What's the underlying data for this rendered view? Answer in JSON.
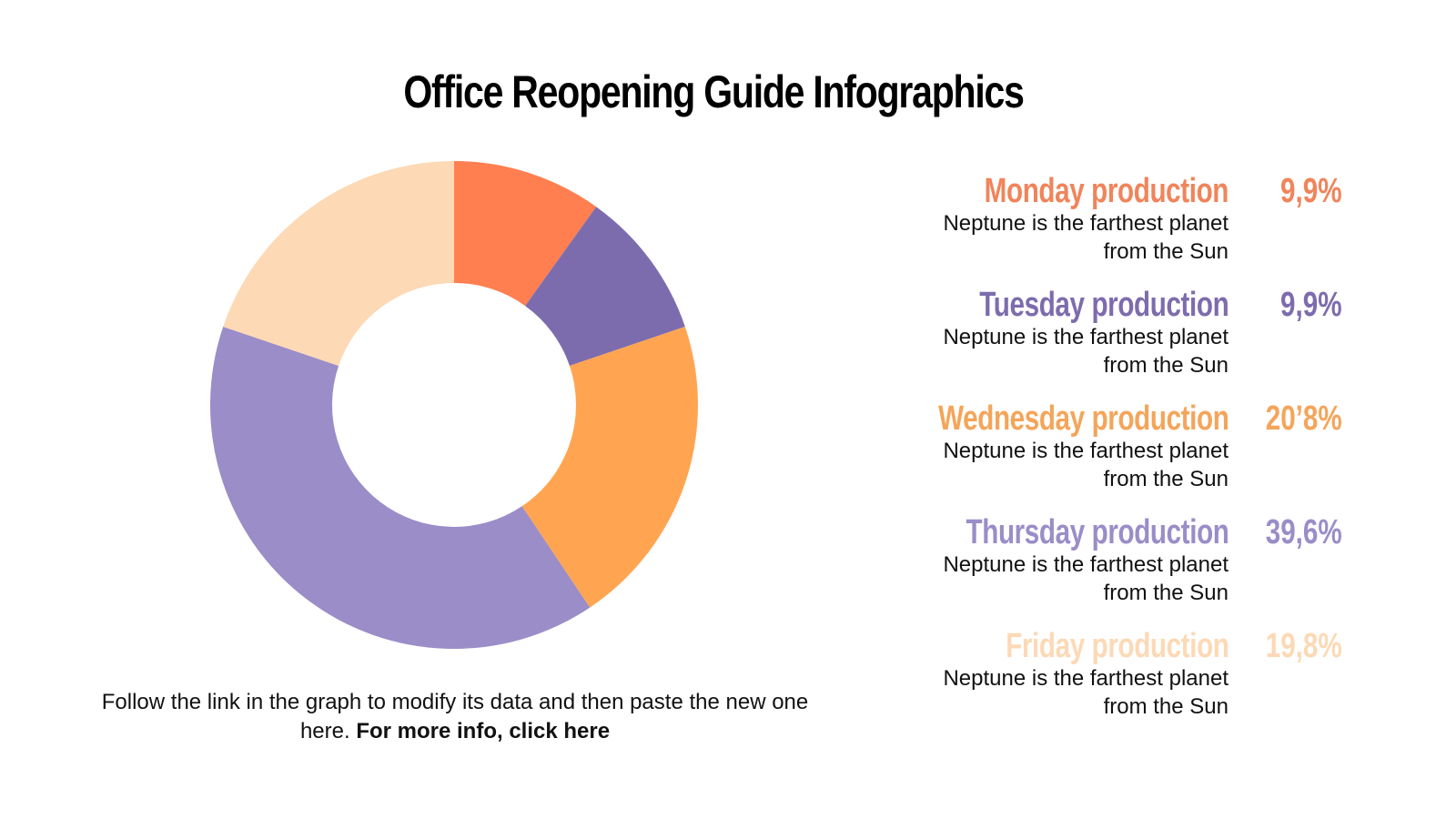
{
  "title": "Office Reopening Guide Infographics",
  "caption": {
    "text": "Follow the link in the graph to modify its data and then paste the new one here. ",
    "link": "For more info, click here"
  },
  "legend": [
    {
      "label": "Monday production",
      "percent": "9,9%",
      "description": "Neptune is the farthest planet from the Sun",
      "color": "#F0845A"
    },
    {
      "label": "Tuesday production",
      "percent": "9,9%",
      "description": "Neptune is the farthest planet from the Sun",
      "color": "#7D6CAD"
    },
    {
      "label": "Wednesday production",
      "percent": "20’8%",
      "description": "Neptune is the farthest planet from the Sun",
      "color": "#F4A55A"
    },
    {
      "label": "Thursday production",
      "percent": "39,6%",
      "description": "Neptune is the farthest planet from the Sun",
      "color": "#9B8DC8"
    },
    {
      "label": "Friday production",
      "percent": "19,8%",
      "description": "Neptune is the farthest planet from the Sun",
      "color": "#FCD9B6"
    }
  ],
  "chart_data": {
    "type": "pie",
    "subtype": "donut",
    "title": "Office Reopening Guide Infographics",
    "categories": [
      "Monday production",
      "Tuesday production",
      "Wednesday production",
      "Thursday production",
      "Friday production"
    ],
    "values": [
      9.9,
      9.9,
      20.8,
      39.6,
      19.8
    ],
    "colors": [
      "#FF7F50",
      "#7D6CAD",
      "#FFA552",
      "#9B8DC8",
      "#FDD9B5"
    ],
    "start_angle_deg": 0,
    "direction": "clockwise",
    "legend_position": "right"
  }
}
